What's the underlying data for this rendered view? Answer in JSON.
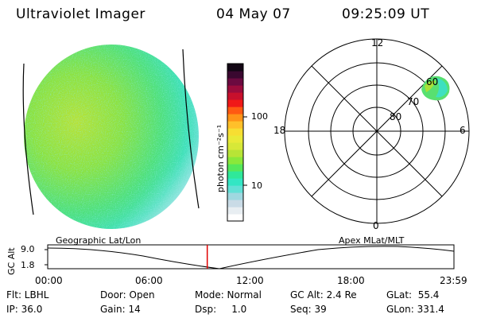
{
  "header": {
    "instrument": "Ultraviolet Imager",
    "date": "04 May 07",
    "time": "09:25:09 UT"
  },
  "colorbar": {
    "unit_label": "photon cm⁻²s⁻¹",
    "ticks": [
      "100",
      "10"
    ],
    "colors": [
      "#ffffff",
      "#e8eef2",
      "#c9dbe6",
      "#9fd8e0",
      "#62e0d6",
      "#33e6c4",
      "#2fe89a",
      "#55e85a",
      "#8ae83a",
      "#b8e436",
      "#d7e838",
      "#e9ea38",
      "#f7de32",
      "#ffc02a",
      "#ff9418",
      "#ff5a12",
      "#f01818",
      "#c8102c",
      "#9c0c3c",
      "#6c0a40",
      "#3a0830",
      "#120614"
    ]
  },
  "polar": {
    "hour_labels": [
      "12",
      "18",
      "6",
      "0"
    ],
    "lat_labels": [
      "60",
      "70",
      "80"
    ]
  },
  "timeline": {
    "axis_label": "GC Alt",
    "y_ticks": [
      "9.0",
      "1.8"
    ],
    "left_label": "Geographic Lat/Lon",
    "right_label": "Apex MLat/MLT",
    "x_ticks": [
      "00:00",
      "06:00",
      "12:00",
      "18:00",
      "23:59"
    ],
    "marker_time": "09:25:09",
    "marker_color": "#e00000"
  },
  "status": {
    "flt": "Flt: LBHL",
    "ip": "IP: 36.0",
    "door": "Door: Open",
    "gain": "Gain: 14",
    "mode": "Mode: Normal",
    "dsp": "Dsp:     1.0",
    "gcalt": "GC Alt: 2.4 Re",
    "seq": "Seq: 39",
    "glat": "GLat:  55.4",
    "glon": "GLon: 331.4"
  }
}
